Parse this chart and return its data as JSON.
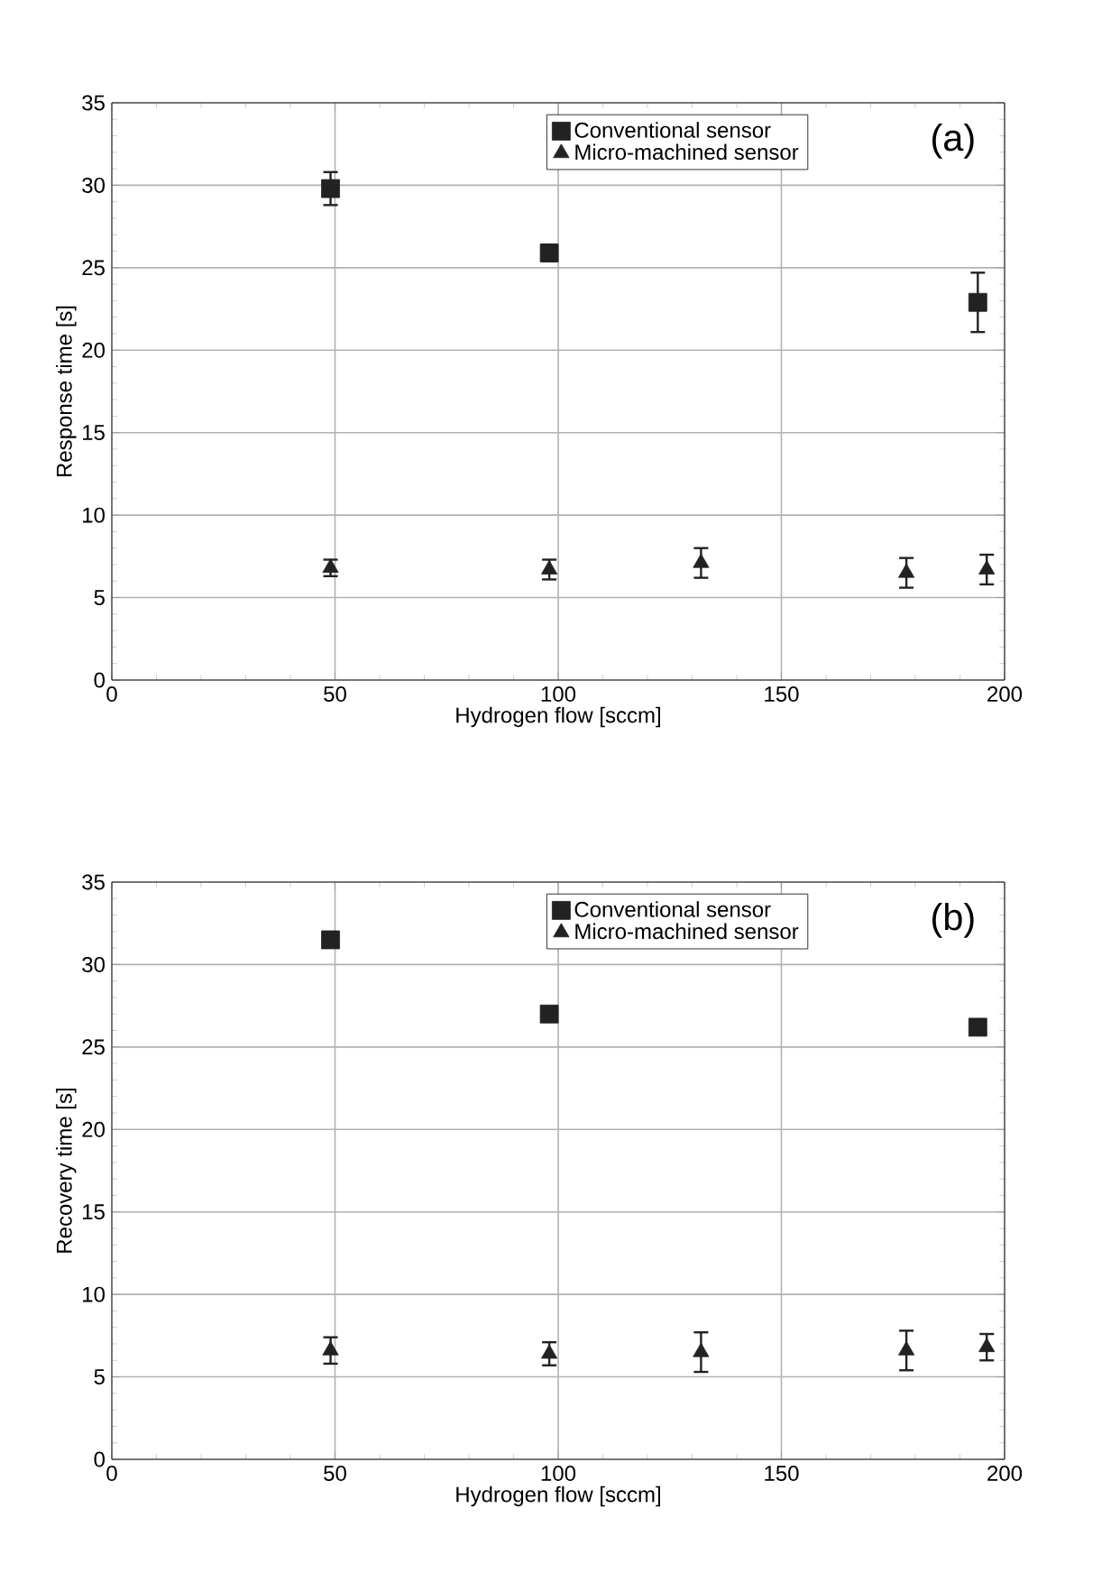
{
  "chart_data": [
    {
      "type": "scatter",
      "xlabel": "Hydrogen flow [sccm]",
      "ylabel": "Response time [s]",
      "annotations": [
        "(a)"
      ],
      "xlim": [
        0,
        200
      ],
      "ylim": [
        0,
        35
      ],
      "xticks": [
        0,
        50,
        100,
        150,
        200
      ],
      "yticks": [
        0,
        5,
        10,
        15,
        20,
        25,
        30,
        35
      ],
      "grid": true,
      "legend": "top",
      "series": [
        {
          "name": "Conventional sensor",
          "color": "#222222",
          "marker": "square",
          "x": [
            49,
            98,
            194
          ],
          "values": [
            29.8,
            25.9,
            22.9
          ],
          "errors": [
            1.0,
            0.5,
            1.8
          ]
        },
        {
          "name": "Micro-machined sensor",
          "color": "#222222",
          "marker": "triangle",
          "x": [
            49,
            98,
            132,
            178,
            196
          ],
          "values": [
            6.8,
            6.7,
            7.1,
            6.5,
            6.7
          ],
          "errors": [
            0.5,
            0.6,
            0.9,
            0.9,
            0.9
          ]
        }
      ]
    },
    {
      "type": "scatter",
      "xlabel": "Hydrogen flow [sccm]",
      "ylabel": "Recovery time [s]",
      "annotations": [
        "(b)"
      ],
      "xlim": [
        0,
        200
      ],
      "ylim": [
        0,
        35
      ],
      "xticks": [
        0,
        50,
        100,
        150,
        200
      ],
      "yticks": [
        0,
        5,
        10,
        15,
        20,
        25,
        30,
        35
      ],
      "grid": true,
      "legend": "top",
      "series": [
        {
          "name": "Conventional sensor",
          "color": "#222222",
          "marker": "square",
          "x": [
            49,
            98,
            194
          ],
          "values": [
            31.5,
            27.0,
            26.2
          ]
        },
        {
          "name": "Micro-machined sensor",
          "color": "#222222",
          "marker": "triangle",
          "x": [
            49,
            98,
            132,
            178,
            196
          ],
          "values": [
            6.6,
            6.4,
            6.5,
            6.6,
            6.8
          ],
          "errors": [
            0.8,
            0.7,
            1.2,
            1.2,
            0.8
          ]
        }
      ]
    }
  ]
}
